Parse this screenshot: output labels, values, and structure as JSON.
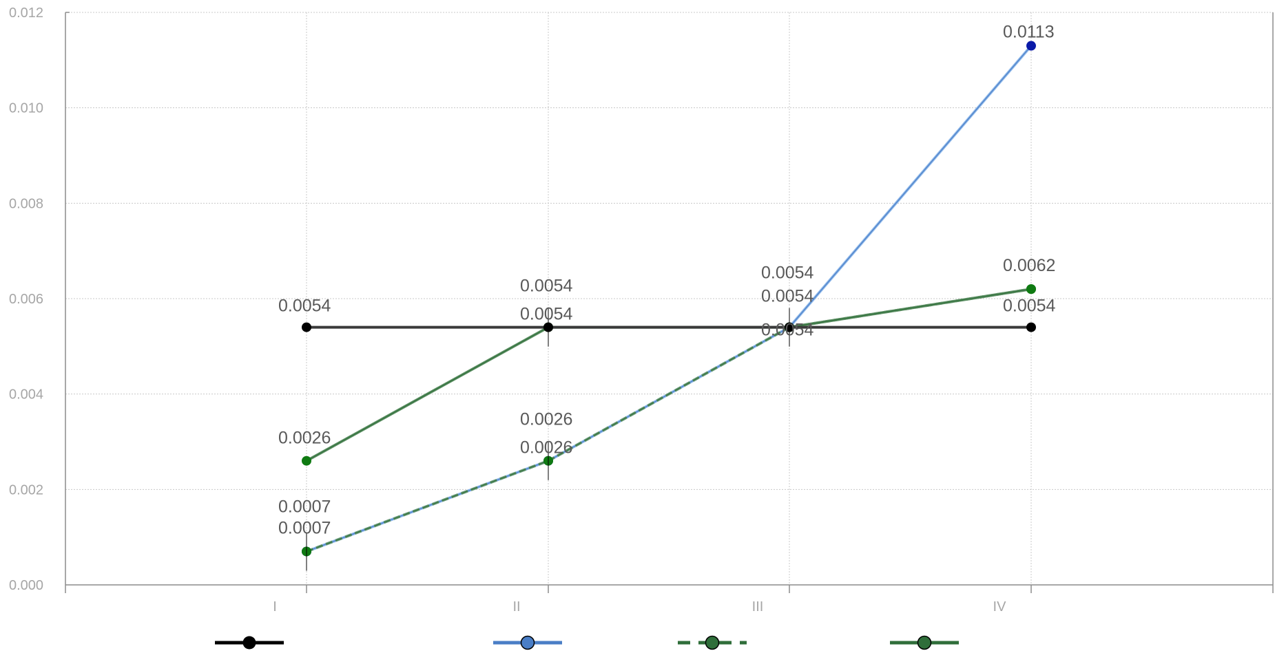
{
  "chart_data": {
    "type": "line",
    "categories": [
      "I",
      "II",
      "III",
      "IV"
    ],
    "ylim": [
      0,
      0.012
    ],
    "yticks": [
      "0.000",
      "0.002",
      "0.004",
      "0.006",
      "0.008",
      "0.010",
      "0.012"
    ],
    "grid": true,
    "legend_position": "bottom",
    "series": [
      {
        "values": [
          0.0054,
          0.0054,
          0.0054,
          0.0054
        ],
        "color": "#000000",
        "line_color": "#3a3a3a",
        "marker_color": "#000000",
        "dash": "solid",
        "labels": [
          "0.0054",
          "0.0054",
          "0.0054",
          "0.0054"
        ]
      },
      {
        "values": [
          0.0007,
          0.0026,
          0.0054,
          0.0113
        ],
        "color": "#4a7ec6",
        "line_color": "#8eb8ea",
        "marker_color": "#0a1aa8",
        "dash": "solid",
        "labels": [
          "0.0007",
          "0.0026",
          "0.0054",
          "0.0113"
        ]
      },
      {
        "values": [
          0.0007,
          0.0026,
          0.0054,
          0.0062
        ],
        "color": "#2f6e3a",
        "line_color": "#6a9a74",
        "marker_color": "#0f7a12",
        "dash": "dashed",
        "labels": [
          "0.0007",
          "0.0026",
          "0.0054",
          "0.0062"
        ]
      },
      {
        "values": [
          0.0026,
          0.0054,
          0.0054,
          0.0062
        ],
        "color": "#2f6e3a",
        "line_color": "#5d9064",
        "marker_color": "#0f7a12",
        "dash": "solid",
        "labels": [
          "0.0026",
          "0.0054",
          "0.0054",
          "0.0062"
        ]
      }
    ]
  }
}
